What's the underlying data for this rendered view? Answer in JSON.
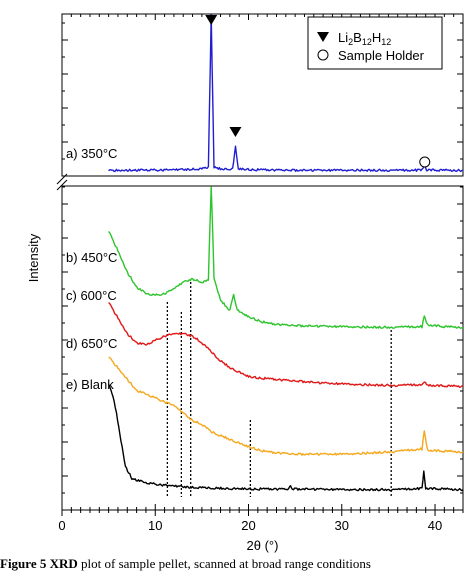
{
  "chart_data": {
    "type": "line",
    "xlabel": "2θ (°)",
    "ylabel": "Intensity",
    "xlim": [
      0,
      43
    ],
    "x_ticks": [
      0,
      10,
      20,
      30,
      40
    ],
    "axis_break": true,
    "legend": {
      "placement": "top-right",
      "entries": [
        {
          "symbol": "filled-triangle-down",
          "label_main": "Li",
          "label_parts": [
            [
              "Li",
              ""
            ],
            [
              "2",
              "sub"
            ],
            [
              "B",
              ""
            ],
            [
              "12",
              "sub"
            ],
            [
              "H",
              ""
            ],
            [
              "12",
              "sub"
            ]
          ]
        },
        {
          "symbol": "open-circle",
          "label_main": "Sample Holder"
        }
      ]
    },
    "series": [
      {
        "name": "a) 350°C",
        "color": "#1f1fd0",
        "panel": "top",
        "points": [
          [
            5,
            0.01
          ],
          [
            10,
            0.012
          ],
          [
            13,
            0.016
          ],
          [
            15,
            0.02
          ],
          [
            15.7,
            0.03
          ],
          [
            16.0,
            1.0
          ],
          [
            16.3,
            0.03
          ],
          [
            17,
            0.02
          ],
          [
            18.3,
            0.02
          ],
          [
            18.6,
            0.16
          ],
          [
            18.9,
            0.02
          ],
          [
            21,
            0.014
          ],
          [
            26,
            0.01
          ],
          [
            32,
            0.012
          ],
          [
            36,
            0.01
          ],
          [
            38.6,
            0.012
          ],
          [
            38.85,
            0.04
          ],
          [
            39.1,
            0.012
          ],
          [
            43,
            0.01
          ]
        ]
      },
      {
        "name": "b) 450°C",
        "color": "#2ec42e",
        "panel": "bottom",
        "points": [
          [
            5,
            0.3
          ],
          [
            6,
            0.24
          ],
          [
            7,
            0.175
          ],
          [
            8,
            0.13
          ],
          [
            9,
            0.11
          ],
          [
            10,
            0.105
          ],
          [
            11,
            0.11
          ],
          [
            12,
            0.125
          ],
          [
            13,
            0.145
          ],
          [
            14,
            0.155
          ],
          [
            15,
            0.145
          ],
          [
            15.7,
            0.15
          ],
          [
            16.0,
            0.45
          ],
          [
            16.3,
            0.16
          ],
          [
            17,
            0.09
          ],
          [
            18,
            0.06
          ],
          [
            18.4,
            0.11
          ],
          [
            18.8,
            0.06
          ],
          [
            20,
            0.04
          ],
          [
            22,
            0.02
          ],
          [
            24,
            0.015
          ],
          [
            26,
            0.012
          ],
          [
            30,
            0.01
          ],
          [
            35,
            0.008
          ],
          [
            38.6,
            0.01
          ],
          [
            38.85,
            0.04
          ],
          [
            39.2,
            0.015
          ],
          [
            41,
            0.01
          ],
          [
            43,
            0.008
          ]
        ]
      },
      {
        "name": "c) 600°C",
        "color": "#e01818",
        "panel": "bottom",
        "points": [
          [
            5,
            0.195
          ],
          [
            6,
            0.16
          ],
          [
            7,
            0.125
          ],
          [
            8,
            0.105
          ],
          [
            9,
            0.1
          ],
          [
            10,
            0.11
          ],
          [
            11,
            0.12
          ],
          [
            12,
            0.125
          ],
          [
            13,
            0.125
          ],
          [
            14,
            0.12
          ],
          [
            15,
            0.105
          ],
          [
            16,
            0.085
          ],
          [
            17,
            0.065
          ],
          [
            18,
            0.05
          ],
          [
            20,
            0.03
          ],
          [
            22,
            0.025
          ],
          [
            25,
            0.02
          ],
          [
            28,
            0.015
          ],
          [
            32,
            0.012
          ],
          [
            36,
            0.01
          ],
          [
            38.7,
            0.012
          ],
          [
            38.85,
            0.02
          ],
          [
            39.1,
            0.01
          ],
          [
            43,
            0.008
          ]
        ]
      },
      {
        "name": "d) 650°C",
        "color": "#f5a81c",
        "panel": "bottom",
        "points": [
          [
            5,
            0.135
          ],
          [
            6,
            0.12
          ],
          [
            7,
            0.105
          ],
          [
            8,
            0.09
          ],
          [
            9,
            0.085
          ],
          [
            10,
            0.08
          ],
          [
            11,
            0.075
          ],
          [
            12,
            0.07
          ],
          [
            13,
            0.06
          ],
          [
            14,
            0.05
          ],
          [
            15,
            0.045
          ],
          [
            16,
            0.035
          ],
          [
            18,
            0.025
          ],
          [
            20,
            0.015
          ],
          [
            22,
            0.008
          ],
          [
            25,
            0.005
          ],
          [
            30,
            0.005
          ],
          [
            35,
            0.008
          ],
          [
            37,
            0.01
          ],
          [
            38.6,
            0.012
          ],
          [
            38.85,
            0.035
          ],
          [
            39.2,
            0.01
          ],
          [
            43,
            0.008
          ]
        ]
      },
      {
        "name": "e) Blank",
        "color": "#000000",
        "panel": "bottom",
        "points": [
          [
            5,
            0.2
          ],
          [
            5.6,
            0.17
          ],
          [
            6.2,
            0.11
          ],
          [
            6.8,
            0.05
          ],
          [
            7.5,
            0.028
          ],
          [
            9,
            0.02
          ],
          [
            11,
            0.016
          ],
          [
            14,
            0.012
          ],
          [
            18,
            0.01
          ],
          [
            22,
            0.009
          ],
          [
            24.3,
            0.009
          ],
          [
            24.5,
            0.015
          ],
          [
            24.7,
            0.009
          ],
          [
            30,
            0.008
          ],
          [
            36,
            0.008
          ],
          [
            38.6,
            0.01
          ],
          [
            38.8,
            0.04
          ],
          [
            39.0,
            0.01
          ],
          [
            43,
            0.008
          ]
        ]
      }
    ],
    "markers": [
      {
        "symbol": "filled-triangle-down",
        "x": 16.0
      },
      {
        "symbol": "filled-triangle-down",
        "x": 18.6
      },
      {
        "symbol": "open-circle",
        "x": 38.9
      }
    ],
    "reference_lines_x": [
      11.3,
      12.8,
      13.8,
      20.2,
      35.3
    ]
  },
  "caption": {
    "lead": "Figure 5 XRD",
    "text": " plot of sample pellet, scanned at broad range conditions"
  }
}
